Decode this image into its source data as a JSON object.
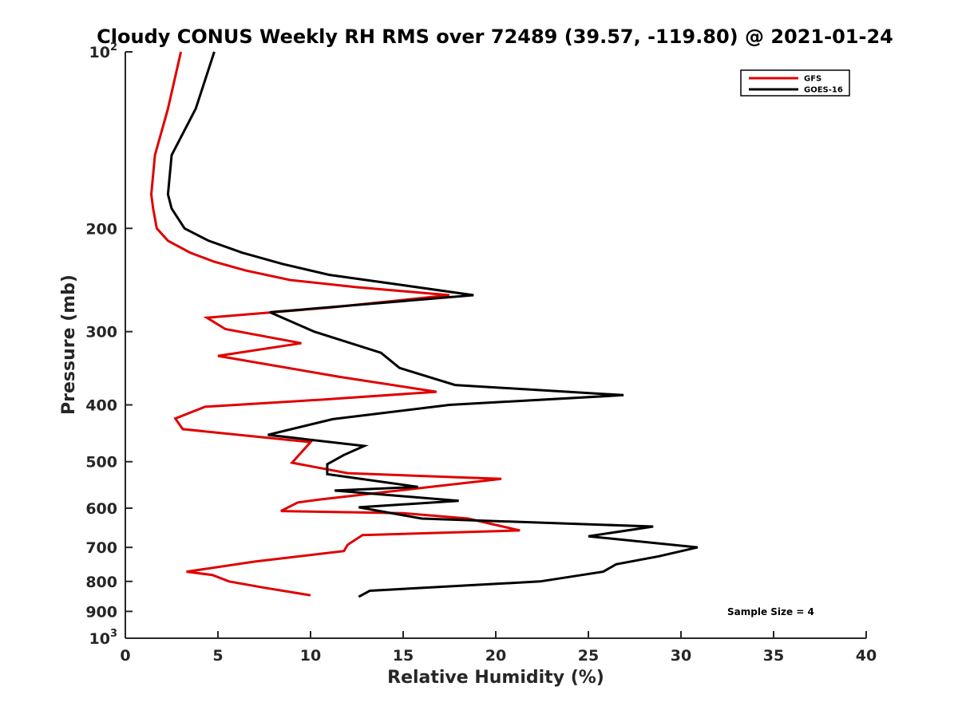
{
  "chart_data": {
    "type": "line",
    "title": "Cloudy CONUS Weekly RH RMS over 72489 (39.57, -119.80) @ 2021-01-24",
    "xlabel": "Relative Humidity (%)",
    "ylabel": "Pressure (mb)",
    "xlim": [
      0,
      40
    ],
    "ylim": [
      100,
      1000
    ],
    "y_scale": "log",
    "y_reversed": true,
    "grid": false,
    "legend_position": "top-right",
    "x_ticks": [
      "0",
      "5",
      "10",
      "15",
      "20",
      "25",
      "30",
      "35",
      "40"
    ],
    "y_ticks": [
      {
        "value": 100,
        "base": "10",
        "exp": "2"
      },
      {
        "value": 200,
        "label": "200"
      },
      {
        "value": 300,
        "label": "300"
      },
      {
        "value": 400,
        "label": "400"
      },
      {
        "value": 500,
        "label": "500"
      },
      {
        "value": 600,
        "label": "600"
      },
      {
        "value": 700,
        "label": "700"
      },
      {
        "value": 800,
        "label": "800"
      },
      {
        "value": 900,
        "label": "900"
      },
      {
        "value": 1000,
        "base": "10",
        "exp": "3"
      }
    ],
    "series": [
      {
        "name": "GFS",
        "color": "#e00000",
        "points": [
          [
            3.0,
            100
          ],
          [
            2.3,
            125
          ],
          [
            1.6,
            150
          ],
          [
            1.4,
            175
          ],
          [
            1.5,
            185
          ],
          [
            1.7,
            200
          ],
          [
            2.3,
            210
          ],
          [
            3.5,
            220
          ],
          [
            4.8,
            228
          ],
          [
            6.5,
            236
          ],
          [
            8.9,
            245
          ],
          [
            12.5,
            252
          ],
          [
            17.5,
            260
          ],
          [
            11.0,
            273
          ],
          [
            4.4,
            284
          ],
          [
            5.4,
            297
          ],
          [
            9.5,
            314
          ],
          [
            5.0,
            330
          ],
          [
            11.5,
            358
          ],
          [
            16.8,
            380
          ],
          [
            10.5,
            392
          ],
          [
            4.3,
            403
          ],
          [
            2.7,
            422
          ],
          [
            3.1,
            440
          ],
          [
            10.0,
            463
          ],
          [
            9.0,
            502
          ],
          [
            12.0,
            523
          ],
          [
            20.3,
            535
          ],
          [
            10.5,
            580
          ],
          [
            9.3,
            587
          ],
          [
            8.4,
            607
          ],
          [
            15.0,
            612
          ],
          [
            18.5,
            625
          ],
          [
            21.3,
            655
          ],
          [
            12.8,
            667
          ],
          [
            12.0,
            693
          ],
          [
            11.8,
            710
          ],
          [
            7.0,
            740
          ],
          [
            3.3,
            770
          ],
          [
            4.7,
            780
          ],
          [
            5.6,
            800
          ],
          [
            7.5,
            820
          ],
          [
            10.0,
            845
          ]
        ]
      },
      {
        "name": "GOES-16",
        "color": "#000000",
        "points": [
          [
            4.8,
            100
          ],
          [
            3.8,
            125
          ],
          [
            2.5,
            150
          ],
          [
            2.3,
            175
          ],
          [
            2.5,
            185
          ],
          [
            3.2,
            200
          ],
          [
            4.5,
            210
          ],
          [
            6.3,
            220
          ],
          [
            8.5,
            230
          ],
          [
            11.0,
            240
          ],
          [
            15.0,
            250
          ],
          [
            18.8,
            260
          ],
          [
            7.8,
            278
          ],
          [
            10.2,
            300
          ],
          [
            13.8,
            326
          ],
          [
            14.8,
            346
          ],
          [
            17.8,
            370
          ],
          [
            26.9,
            385
          ],
          [
            17.5,
            400
          ],
          [
            11.2,
            423
          ],
          [
            7.7,
            450
          ],
          [
            12.9,
            470
          ],
          [
            11.8,
            487
          ],
          [
            10.9,
            505
          ],
          [
            10.9,
            525
          ],
          [
            15.8,
            552
          ],
          [
            11.3,
            560
          ],
          [
            18.0,
            583
          ],
          [
            12.6,
            598
          ],
          [
            16.0,
            625
          ],
          [
            28.5,
            645
          ],
          [
            25.0,
            670
          ],
          [
            30.9,
            700
          ],
          [
            28.8,
            725
          ],
          [
            26.5,
            748
          ],
          [
            25.8,
            770
          ],
          [
            22.4,
            800
          ],
          [
            13.2,
            830
          ],
          [
            12.6,
            850
          ]
        ]
      }
    ],
    "annotations": [
      "Sample Size = 4"
    ]
  }
}
